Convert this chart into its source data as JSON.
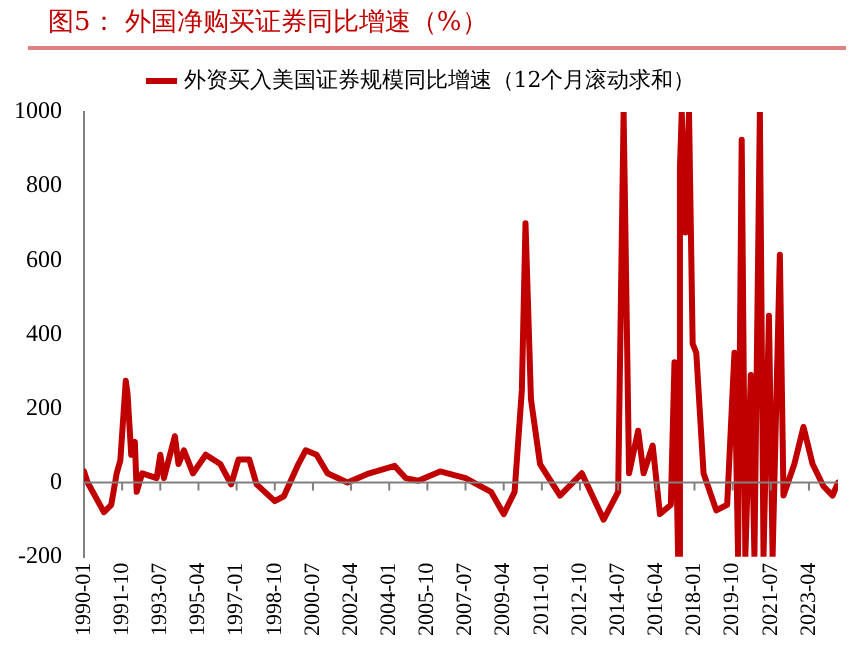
{
  "chart_data": {
    "type": "line",
    "title": "图5：  外国净购买证券同比增速（%）",
    "x": [
      "1990-01",
      "1990-03",
      "1990-12",
      "1991-04",
      "1991-07",
      "1991-09",
      "1991-12",
      "1992-01",
      "1992-03",
      "1992-05",
      "1992-06",
      "1992-09",
      "1993-05",
      "1993-07",
      "1993-09",
      "1994-03",
      "1994-05",
      "1994-08",
      "1995-01",
      "1995-08",
      "1996-04",
      "1996-10",
      "1997-02",
      "1997-08",
      "1997-12",
      "1998-10",
      "1999-03",
      "1999-11",
      "2000-03",
      "2000-09",
      "2001-03",
      "2002-02",
      "2003-02",
      "2004-04",
      "2004-10",
      "2005-05",
      "2006-05",
      "2007-07",
      "2008-09",
      "2009-04",
      "2009-10",
      "2010-02",
      "2010-04",
      "2010-07",
      "2010-12",
      "2011-11",
      "2012-11",
      "2013-11",
      "2014-07",
      "2014-10",
      "2015-01",
      "2015-06",
      "2015-09",
      "2016-02",
      "2016-06",
      "2016-12",
      "2017-02",
      "2017-04",
      "2017-05",
      "2017-06",
      "2017-08",
      "2017-10",
      "2017-12",
      "2018-02",
      "2018-06",
      "2019-01",
      "2019-07",
      "2019-11",
      "2020-01",
      "2020-03",
      "2020-05",
      "2020-08",
      "2020-10",
      "2021-01",
      "2021-03",
      "2021-06",
      "2021-08",
      "2021-12",
      "2022-02",
      "2022-08",
      "2023-01",
      "2023-06",
      "2023-12",
      "2024-05",
      "2024-08"
    ],
    "series": [
      {
        "name": "外资买入美国证券规模同比增速（12个月滚动求和）",
        "color": "#c00000",
        "values": [
          30,
          0,
          -80,
          -60,
          25,
          60,
          275,
          237,
          75,
          110,
          -25,
          25,
          12,
          75,
          12,
          125,
          50,
          87,
          25,
          75,
          50,
          -5,
          62,
          62,
          -5,
          -50,
          -37,
          50,
          87,
          75,
          25,
          0,
          25,
          45,
          12,
          5,
          30,
          12,
          -25,
          -85,
          -25,
          250,
          700,
          225,
          50,
          -35,
          25,
          -100,
          -25,
          1000,
          25,
          140,
          25,
          100,
          -85,
          -60,
          325,
          -200,
          850,
          1000,
          675,
          1000,
          375,
          350,
          25,
          -75,
          -60,
          350,
          -200,
          925,
          -200,
          290,
          -200,
          1000,
          -200,
          450,
          -200,
          615,
          -35,
          50,
          150,
          50,
          -10,
          -35,
          0
        ]
      }
    ],
    "xlim": [
      "1990-01",
      "2024-08"
    ],
    "xticks": [
      "1990-01",
      "1991-10",
      "1993-07",
      "1995-04",
      "1997-01",
      "1998-10",
      "2000-07",
      "2002-04",
      "2004-01",
      "2005-10",
      "2007-07",
      "2009-04",
      "2011-01",
      "2012-10",
      "2014-07",
      "2016-04",
      "2018-01",
      "2019-10",
      "2021-07",
      "2023-04"
    ],
    "ylim": [
      -200,
      1000
    ],
    "yticks": [
      -200,
      0,
      200,
      400,
      600,
      800,
      1000
    ],
    "legend": "top",
    "marker": "none",
    "line_style": "solid"
  }
}
